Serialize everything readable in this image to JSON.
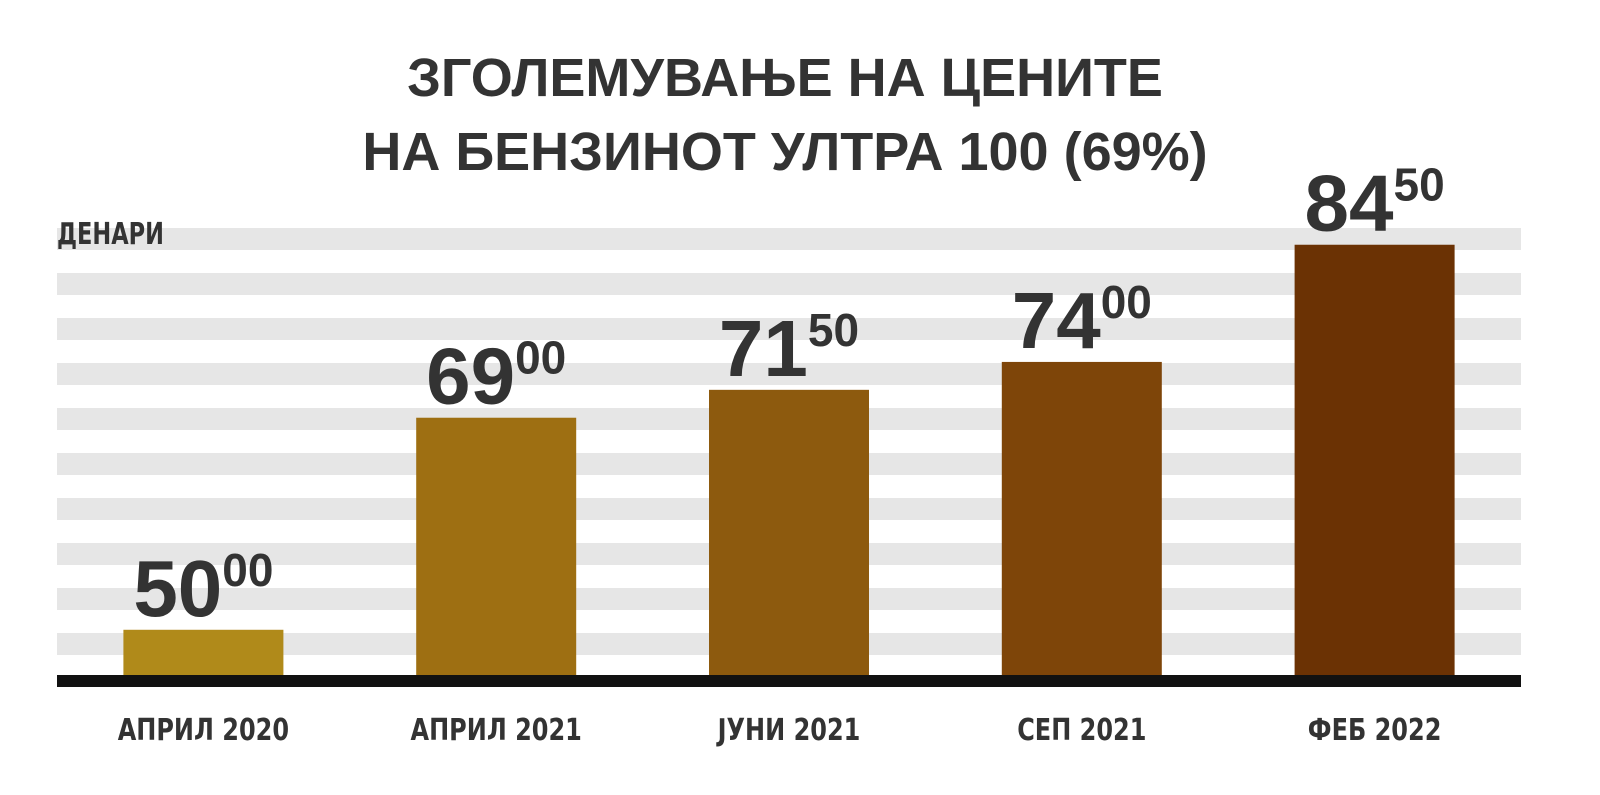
{
  "chart_data": {
    "type": "bar",
    "title": [
      "ЗГОЛЕМУВАЊЕ НА ЦЕНИТЕ",
      "НА БЕНЗИНОТ УЛТРА 100 (69%)"
    ],
    "y_label": "ДЕНАРИ",
    "categories": [
      "АПРИЛ 2020",
      "АПРИЛ 2021",
      "ЈУНИ 2021",
      "СЕП 2021",
      "ФЕБ 2022"
    ],
    "values": [
      50,
      69,
      71.5,
      74,
      84.5
    ],
    "value_labels": [
      [
        "50",
        "00"
      ],
      [
        "69",
        "00"
      ],
      [
        "71",
        "50"
      ],
      [
        "74",
        "00"
      ],
      [
        "84",
        "50"
      ]
    ],
    "colors": [
      "#b08a1a",
      "#9e6f12",
      "#8d5a0e",
      "#7e4509",
      "#6b3204"
    ],
    "ylim": [
      45.5,
      86
    ]
  }
}
